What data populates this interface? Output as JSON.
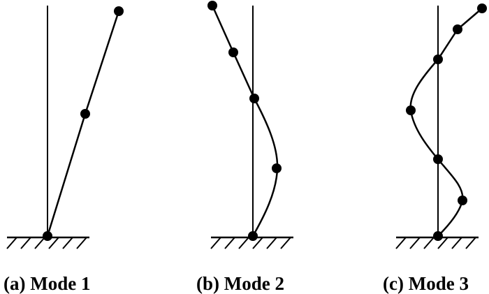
{
  "panels": [
    {
      "id": "a",
      "caption": "(a) Mode 1"
    },
    {
      "id": "b",
      "caption": "(b) Mode 2"
    },
    {
      "id": "c",
      "caption": "(c) Mode 3"
    }
  ]
}
